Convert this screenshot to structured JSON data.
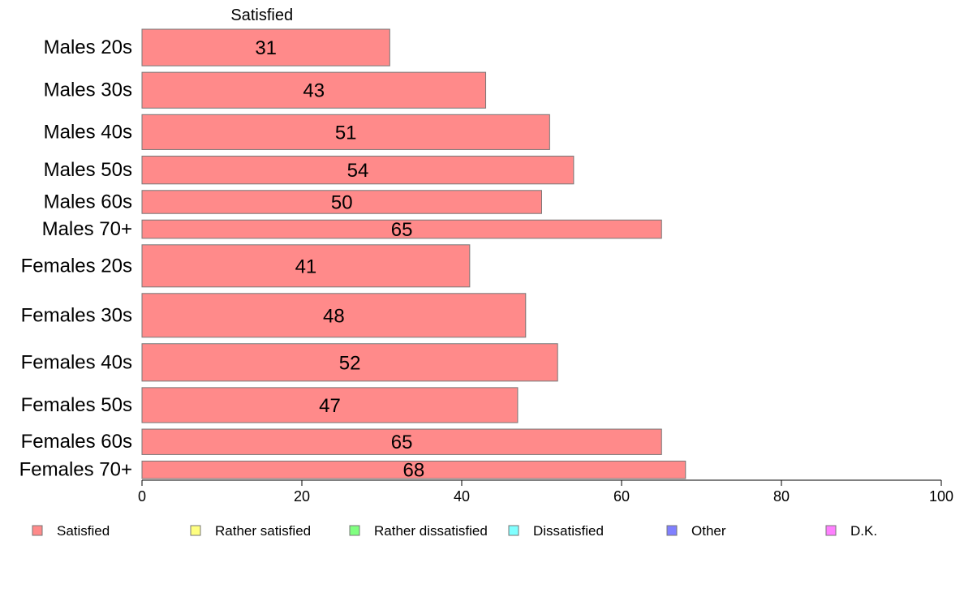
{
  "chart_data": {
    "type": "bar",
    "orientation": "horizontal",
    "stacked": true,
    "column_header": "Satisfied",
    "categories": [
      "Males 20s",
      "Males 30s",
      "Males 40s",
      "Males 50s",
      "Males 60s",
      "Males 70+",
      "Females 20s",
      "Females 30s",
      "Females 40s",
      "Females 50s",
      "Females 60s",
      "Females 70+"
    ],
    "bar_weights": [
      46,
      45,
      44,
      35,
      29,
      23,
      53,
      55,
      47,
      44,
      32,
      22
    ],
    "series": [
      {
        "name": "Satisfied",
        "color": "#ff8a8a",
        "values": [
          31,
          43,
          51,
          54,
          50,
          65,
          41,
          48,
          52,
          47,
          65,
          68
        ]
      }
    ],
    "legend": [
      {
        "name": "Satisfied",
        "color": "#ff8a8a"
      },
      {
        "name": "Rather satisfied",
        "color": "#ffff80"
      },
      {
        "name": "Rather dissatisfied",
        "color": "#80ff80"
      },
      {
        "name": "Dissatisfied",
        "color": "#80ffff"
      },
      {
        "name": "Other",
        "color": "#8080ff"
      },
      {
        "name": "D.K.",
        "color": "#ff80ff"
      }
    ],
    "xlim": [
      0,
      100
    ],
    "xticks": [
      0,
      20,
      40,
      60,
      80,
      100
    ],
    "legend_position": "bottom",
    "grid": false
  }
}
